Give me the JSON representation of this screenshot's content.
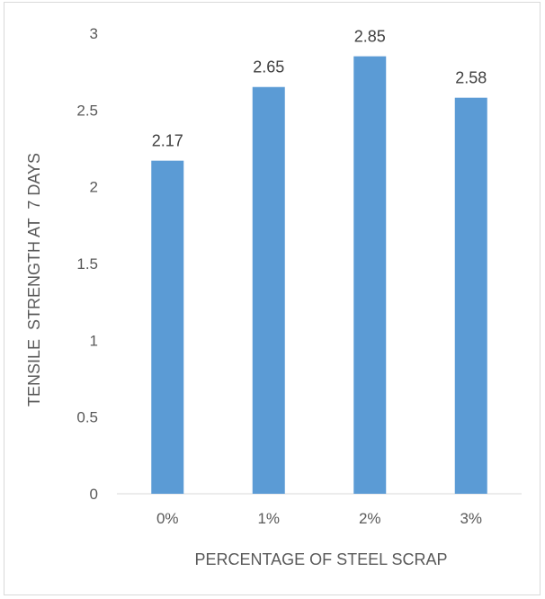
{
  "chart_data": {
    "type": "bar",
    "title": "",
    "xlabel": "PERCENTAGE OF STEEL SCRAP",
    "ylabel": "TENSILE  STRENGTH AT  7 DAYS",
    "categories": [
      "0%",
      "1%",
      "2%",
      "3%"
    ],
    "values": [
      2.17,
      2.65,
      2.85,
      2.58
    ],
    "data_labels": [
      "2.17",
      "2.65",
      "2.85",
      "2.58"
    ],
    "ylim": [
      0,
      3
    ],
    "yticks": [
      "0",
      "0.5",
      "1",
      "1.5",
      "2",
      "2.5",
      "3"
    ],
    "ytick_values": [
      0,
      0.5,
      1,
      1.5,
      2,
      2.5,
      3
    ],
    "grid": false,
    "legend": "none",
    "bar_color": "#5b9bd5",
    "axis_color": "#d9d9d9"
  }
}
